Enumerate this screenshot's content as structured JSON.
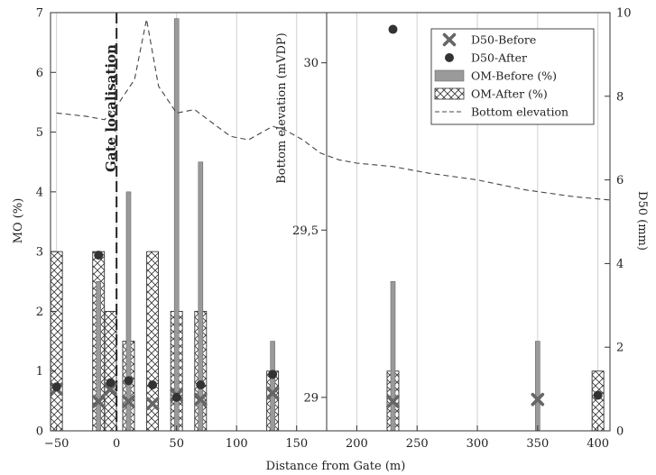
{
  "chart_data": {
    "type": "bar",
    "xlabel": "Distance from Gate (m)",
    "ylabel_left": "MO (%)",
    "ylabel_right": "D50 (mm)",
    "ylabel_elevation": "Bottom elevation (mVDP)",
    "gate_label": "Gate localisation",
    "gate_x": 0,
    "x_panel_left": {
      "xlim": [
        -55,
        175
      ],
      "ticks": [
        -50,
        0,
        50,
        100,
        150
      ],
      "tick_labels": [
        "−50",
        "0",
        "50",
        "100",
        "150"
      ]
    },
    "x_panel_right": {
      "xlim": [
        175,
        410
      ],
      "ticks": [
        200,
        250,
        300,
        350,
        400
      ],
      "tick_labels": [
        "200",
        "250",
        "300",
        "350",
        "400"
      ]
    },
    "y_left": {
      "ylim": [
        0,
        7
      ],
      "ticks": [
        0,
        1,
        2,
        3,
        4,
        5,
        6,
        7
      ],
      "tick_labels": [
        "0",
        "1",
        "2",
        "3",
        "4",
        "5",
        "6",
        "7"
      ]
    },
    "y_right": {
      "ylim": [
        0,
        10
      ],
      "ticks": [
        0,
        2,
        4,
        6,
        8,
        10
      ],
      "tick_labels": [
        "0",
        "2",
        "4",
        "6",
        "8",
        "10"
      ]
    },
    "y_elevation": {
      "ylim": [
        28.9,
        30.15
      ],
      "ticks": [
        29,
        29.5,
        30
      ],
      "tick_labels": [
        "29",
        "29,5",
        "30"
      ]
    },
    "legend": {
      "placement": "top-right",
      "entries": [
        "D50-Before",
        "D50-After",
        "OM-Before (%)",
        "OM-After (%)",
        "Bottom elevation"
      ]
    },
    "series": [
      {
        "name": "OM-Before (%)",
        "kind": "bar",
        "x": [
          -15,
          10,
          50,
          70,
          130,
          230,
          350
        ],
        "values": [
          2.5,
          4.0,
          6.9,
          4.5,
          1.5,
          2.5,
          1.5
        ]
      },
      {
        "name": "OM-After (%)",
        "kind": "bar",
        "x": [
          -50,
          -15,
          -5,
          10,
          30,
          50,
          70,
          130,
          230,
          400
        ],
        "values": [
          3.0,
          3.0,
          2.0,
          1.5,
          3.0,
          2.0,
          2.0,
          1.0,
          1.0,
          1.0
        ]
      },
      {
        "name": "D50-Before",
        "kind": "scatter",
        "x": [
          -50,
          -15,
          -5,
          10,
          30,
          50,
          70,
          130,
          230,
          350
        ],
        "values": [
          1.0,
          0.7,
          1.0,
          0.7,
          0.65,
          0.85,
          0.75,
          0.9,
          0.7,
          0.75
        ]
      },
      {
        "name": "D50-After",
        "kind": "scatter",
        "x": [
          -50,
          -15,
          -5,
          10,
          30,
          50,
          70,
          130,
          230,
          400
        ],
        "values": [
          1.05,
          4.2,
          1.15,
          1.2,
          1.1,
          0.8,
          1.1,
          1.35,
          9.6,
          0.85
        ]
      },
      {
        "name": "Bottom elevation",
        "kind": "line",
        "x": [
          -50,
          -25,
          -10,
          0,
          15,
          25,
          35,
          50,
          65,
          80,
          95,
          110,
          130,
          140,
          155,
          170,
          185,
          200,
          230,
          260,
          300,
          340,
          380,
          410
        ],
        "values": [
          29.85,
          29.84,
          29.83,
          29.87,
          29.95,
          30.13,
          29.93,
          29.85,
          29.86,
          29.82,
          29.78,
          29.77,
          29.81,
          29.8,
          29.77,
          29.73,
          29.71,
          29.7,
          29.69,
          29.67,
          29.65,
          29.62,
          29.6,
          29.59
        ]
      }
    ]
  }
}
